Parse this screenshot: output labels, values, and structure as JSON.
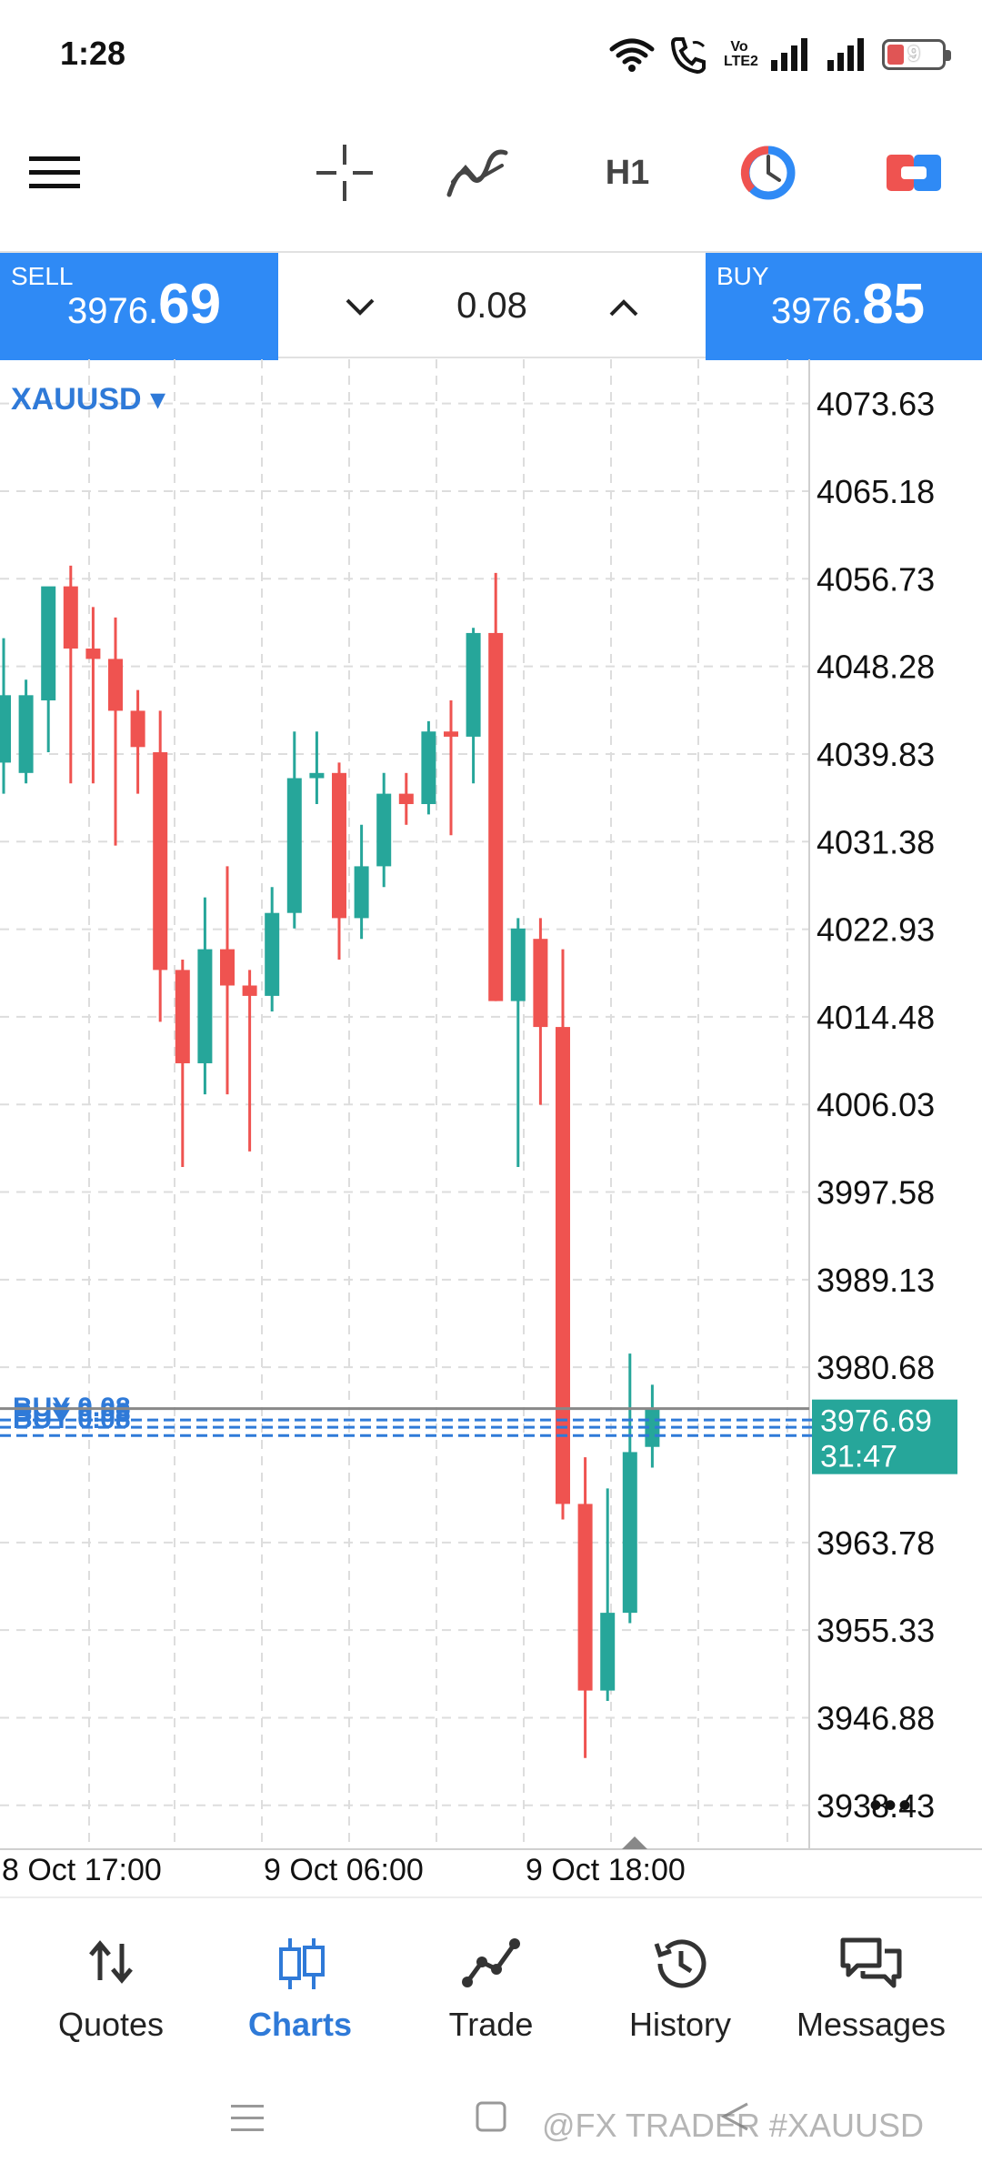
{
  "status_bar": {
    "time": "1:28",
    "volte_label": "Vo LTE2",
    "battery_level": "9"
  },
  "toolbar": {
    "timeframe_label": "H1",
    "icons": [
      "menu-icon",
      "crosshair-icon",
      "indicators-icon",
      "timeframe-H1",
      "one-click-trading-icon",
      "chart-style-icon"
    ]
  },
  "trade_bar": {
    "sell": {
      "label": "SELL",
      "price_small": "3976.",
      "price_big": "69"
    },
    "buy": {
      "label": "BUY",
      "price_small": "3976.",
      "price_big": "85"
    },
    "lot_value": "0.08"
  },
  "chart": {
    "symbol": "XAUUSD ▾",
    "more_label": "•••"
  },
  "chart_data": {
    "type": "candlestick",
    "symbol": "XAUUSD",
    "timeframe": "H1",
    "y_axis": {
      "ylim": [
        3934.2,
        4077.9
      ],
      "tick_labels": [
        "4073.63",
        "4065.18",
        "4056.73",
        "4048.28",
        "4039.83",
        "4031.38",
        "4022.93",
        "4014.48",
        "4006.03",
        "3997.58",
        "3989.13",
        "3980.68",
        "3963.78",
        "3955.33",
        "3946.88",
        "3938.43"
      ]
    },
    "x_axis": {
      "tick_labels": [
        "8 Oct 17:00",
        "9 Oct 06:00",
        "9 Oct 18:00"
      ]
    },
    "current_price_label": "3976.69",
    "countdown_label": "31:47",
    "position_lines": [
      {
        "label": "BUY 0.08",
        "price": 3975.6
      },
      {
        "label": "BUY 0.08",
        "price": 3974.9
      },
      {
        "label": "BUY 0.08",
        "price": 3974.1
      }
    ],
    "colors": {
      "bull": "#26a69a",
      "bear": "#ef5350",
      "grid": "#dddddd",
      "price_line": "#888888",
      "position_line": "#2f7ad8"
    },
    "candles": [
      {
        "o": 4039.0,
        "h": 4051.0,
        "l": 4036.0,
        "c": 4045.5
      },
      {
        "o": 4038.0,
        "h": 4047.0,
        "l": 4037.0,
        "c": 4045.5
      },
      {
        "o": 4045.0,
        "h": 4055.3,
        "l": 4040.0,
        "c": 4056.0
      },
      {
        "o": 4056.0,
        "h": 4058.0,
        "l": 4037.0,
        "c": 4050.0
      },
      {
        "o": 4050.0,
        "h": 4054.0,
        "l": 4037.0,
        "c": 4049.0
      },
      {
        "o": 4049.0,
        "h": 4053.0,
        "l": 4031.0,
        "c": 4044.0
      },
      {
        "o": 4044.0,
        "h": 4046.0,
        "l": 4036.0,
        "c": 4040.5
      },
      {
        "o": 4040.0,
        "h": 4044.0,
        "l": 4014.0,
        "c": 4019.0
      },
      {
        "o": 4019.0,
        "h": 4020.0,
        "l": 4000.0,
        "c": 4010.0
      },
      {
        "o": 4010.0,
        "h": 4026.0,
        "l": 4007.0,
        "c": 4021.0
      },
      {
        "o": 4021.0,
        "h": 4029.0,
        "l": 4007.0,
        "c": 4017.5
      },
      {
        "o": 4017.5,
        "h": 4019.0,
        "l": 4001.5,
        "c": 4016.5
      },
      {
        "o": 4016.5,
        "h": 4027.0,
        "l": 4015.0,
        "c": 4024.5
      },
      {
        "o": 4024.5,
        "h": 4042.0,
        "l": 4023.0,
        "c": 4037.5
      },
      {
        "o": 4037.5,
        "h": 4042.0,
        "l": 4035.0,
        "c": 4038.0
      },
      {
        "o": 4038.0,
        "h": 4039.0,
        "l": 4020.0,
        "c": 4024.0
      },
      {
        "o": 4024.0,
        "h": 4033.0,
        "l": 4022.0,
        "c": 4029.0
      },
      {
        "o": 4029.0,
        "h": 4038.0,
        "l": 4027.0,
        "c": 4036.0
      },
      {
        "o": 4036.0,
        "h": 4038.0,
        "l": 4033.0,
        "c": 4035.0
      },
      {
        "o": 4035.0,
        "h": 4043.0,
        "l": 4034.0,
        "c": 4042.0
      },
      {
        "o": 4042.0,
        "h": 4045.0,
        "l": 4032.0,
        "c": 4041.5
      },
      {
        "o": 4041.5,
        "h": 4052.0,
        "l": 4037.0,
        "c": 4051.5
      },
      {
        "o": 4051.5,
        "h": 4057.3,
        "l": 4016.0,
        "c": 4016.0
      },
      {
        "o": 4016.0,
        "h": 4024.0,
        "l": 4000.0,
        "c": 4023.0
      },
      {
        "o": 4022.0,
        "h": 4024.0,
        "l": 4006.0,
        "c": 4013.5
      },
      {
        "o": 4013.5,
        "h": 4021.0,
        "l": 3966.0,
        "c": 3967.5
      },
      {
        "o": 3967.5,
        "h": 3972.0,
        "l": 3943.0,
        "c": 3949.5
      },
      {
        "o": 3949.5,
        "h": 3969.0,
        "l": 3948.5,
        "c": 3957.0
      },
      {
        "o": 3957.0,
        "h": 3982.0,
        "l": 3956.0,
        "c": 3972.5
      },
      {
        "o": 3973.0,
        "h": 3979.0,
        "l": 3971.0,
        "c": 3976.7
      }
    ]
  },
  "bottom_nav": {
    "items": [
      {
        "label": "Quotes",
        "icon": "quotes-icon"
      },
      {
        "label": "Charts",
        "icon": "charts-icon",
        "active": true
      },
      {
        "label": "Trade",
        "icon": "trade-icon"
      },
      {
        "label": "History",
        "icon": "history-icon"
      },
      {
        "label": "Messages",
        "icon": "messages-icon"
      }
    ]
  },
  "watermark": "@FX TRADER #XAUUSD"
}
